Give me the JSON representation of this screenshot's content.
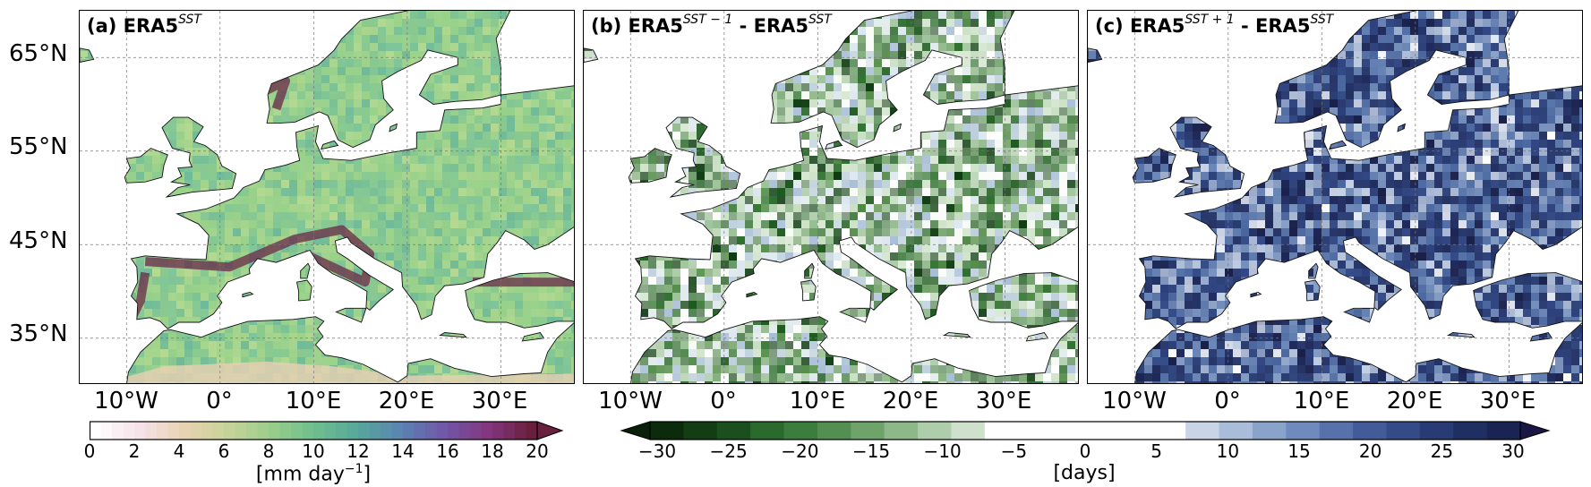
{
  "panels": [
    {
      "id": "a",
      "title_prefix": "(a) ERA5",
      "title_sup": "SST",
      "title_mid": "",
      "title_sup2": "",
      "colormap": "sequential"
    },
    {
      "id": "b",
      "title_prefix": "(b) ERA5",
      "title_sup": "SST − 1",
      "title_mid": " - ERA5",
      "title_sup2": "SST",
      "colormap": "green"
    },
    {
      "id": "c",
      "title_prefix": "(c) ERA5",
      "title_sup": "SST + 1",
      "title_mid": " - ERA5",
      "title_sup2": "SST",
      "colormap": "blue"
    }
  ],
  "lat_labels": [
    "65°N",
    "55°N",
    "45°N",
    "35°N"
  ],
  "lon_labels": [
    "10°W",
    "0°",
    "10°E",
    "20°E",
    "30°E"
  ],
  "colorbar_precip": {
    "ticks": [
      "0",
      "2",
      "4",
      "6",
      "8",
      "10",
      "12",
      "14",
      "16",
      "18",
      "20"
    ],
    "unit": "[mm day",
    "unit_sup": "−1",
    "unit_end": "]",
    "colors": [
      "#ffffff",
      "#f6e2ea",
      "#e9d3b3",
      "#c9d39a",
      "#9bcf8a",
      "#6fbf8e",
      "#57a89a",
      "#5a84b2",
      "#7157a8",
      "#83367f",
      "#6a1f3c"
    ],
    "extend": "max"
  },
  "colorbar_days": {
    "ticks": [
      "−30",
      "−25",
      "−20",
      "−15",
      "−10",
      "−5",
      "0",
      "5",
      "10",
      "15",
      "20",
      "25",
      "30"
    ],
    "unit": "[days]",
    "extend": "both"
  }
}
